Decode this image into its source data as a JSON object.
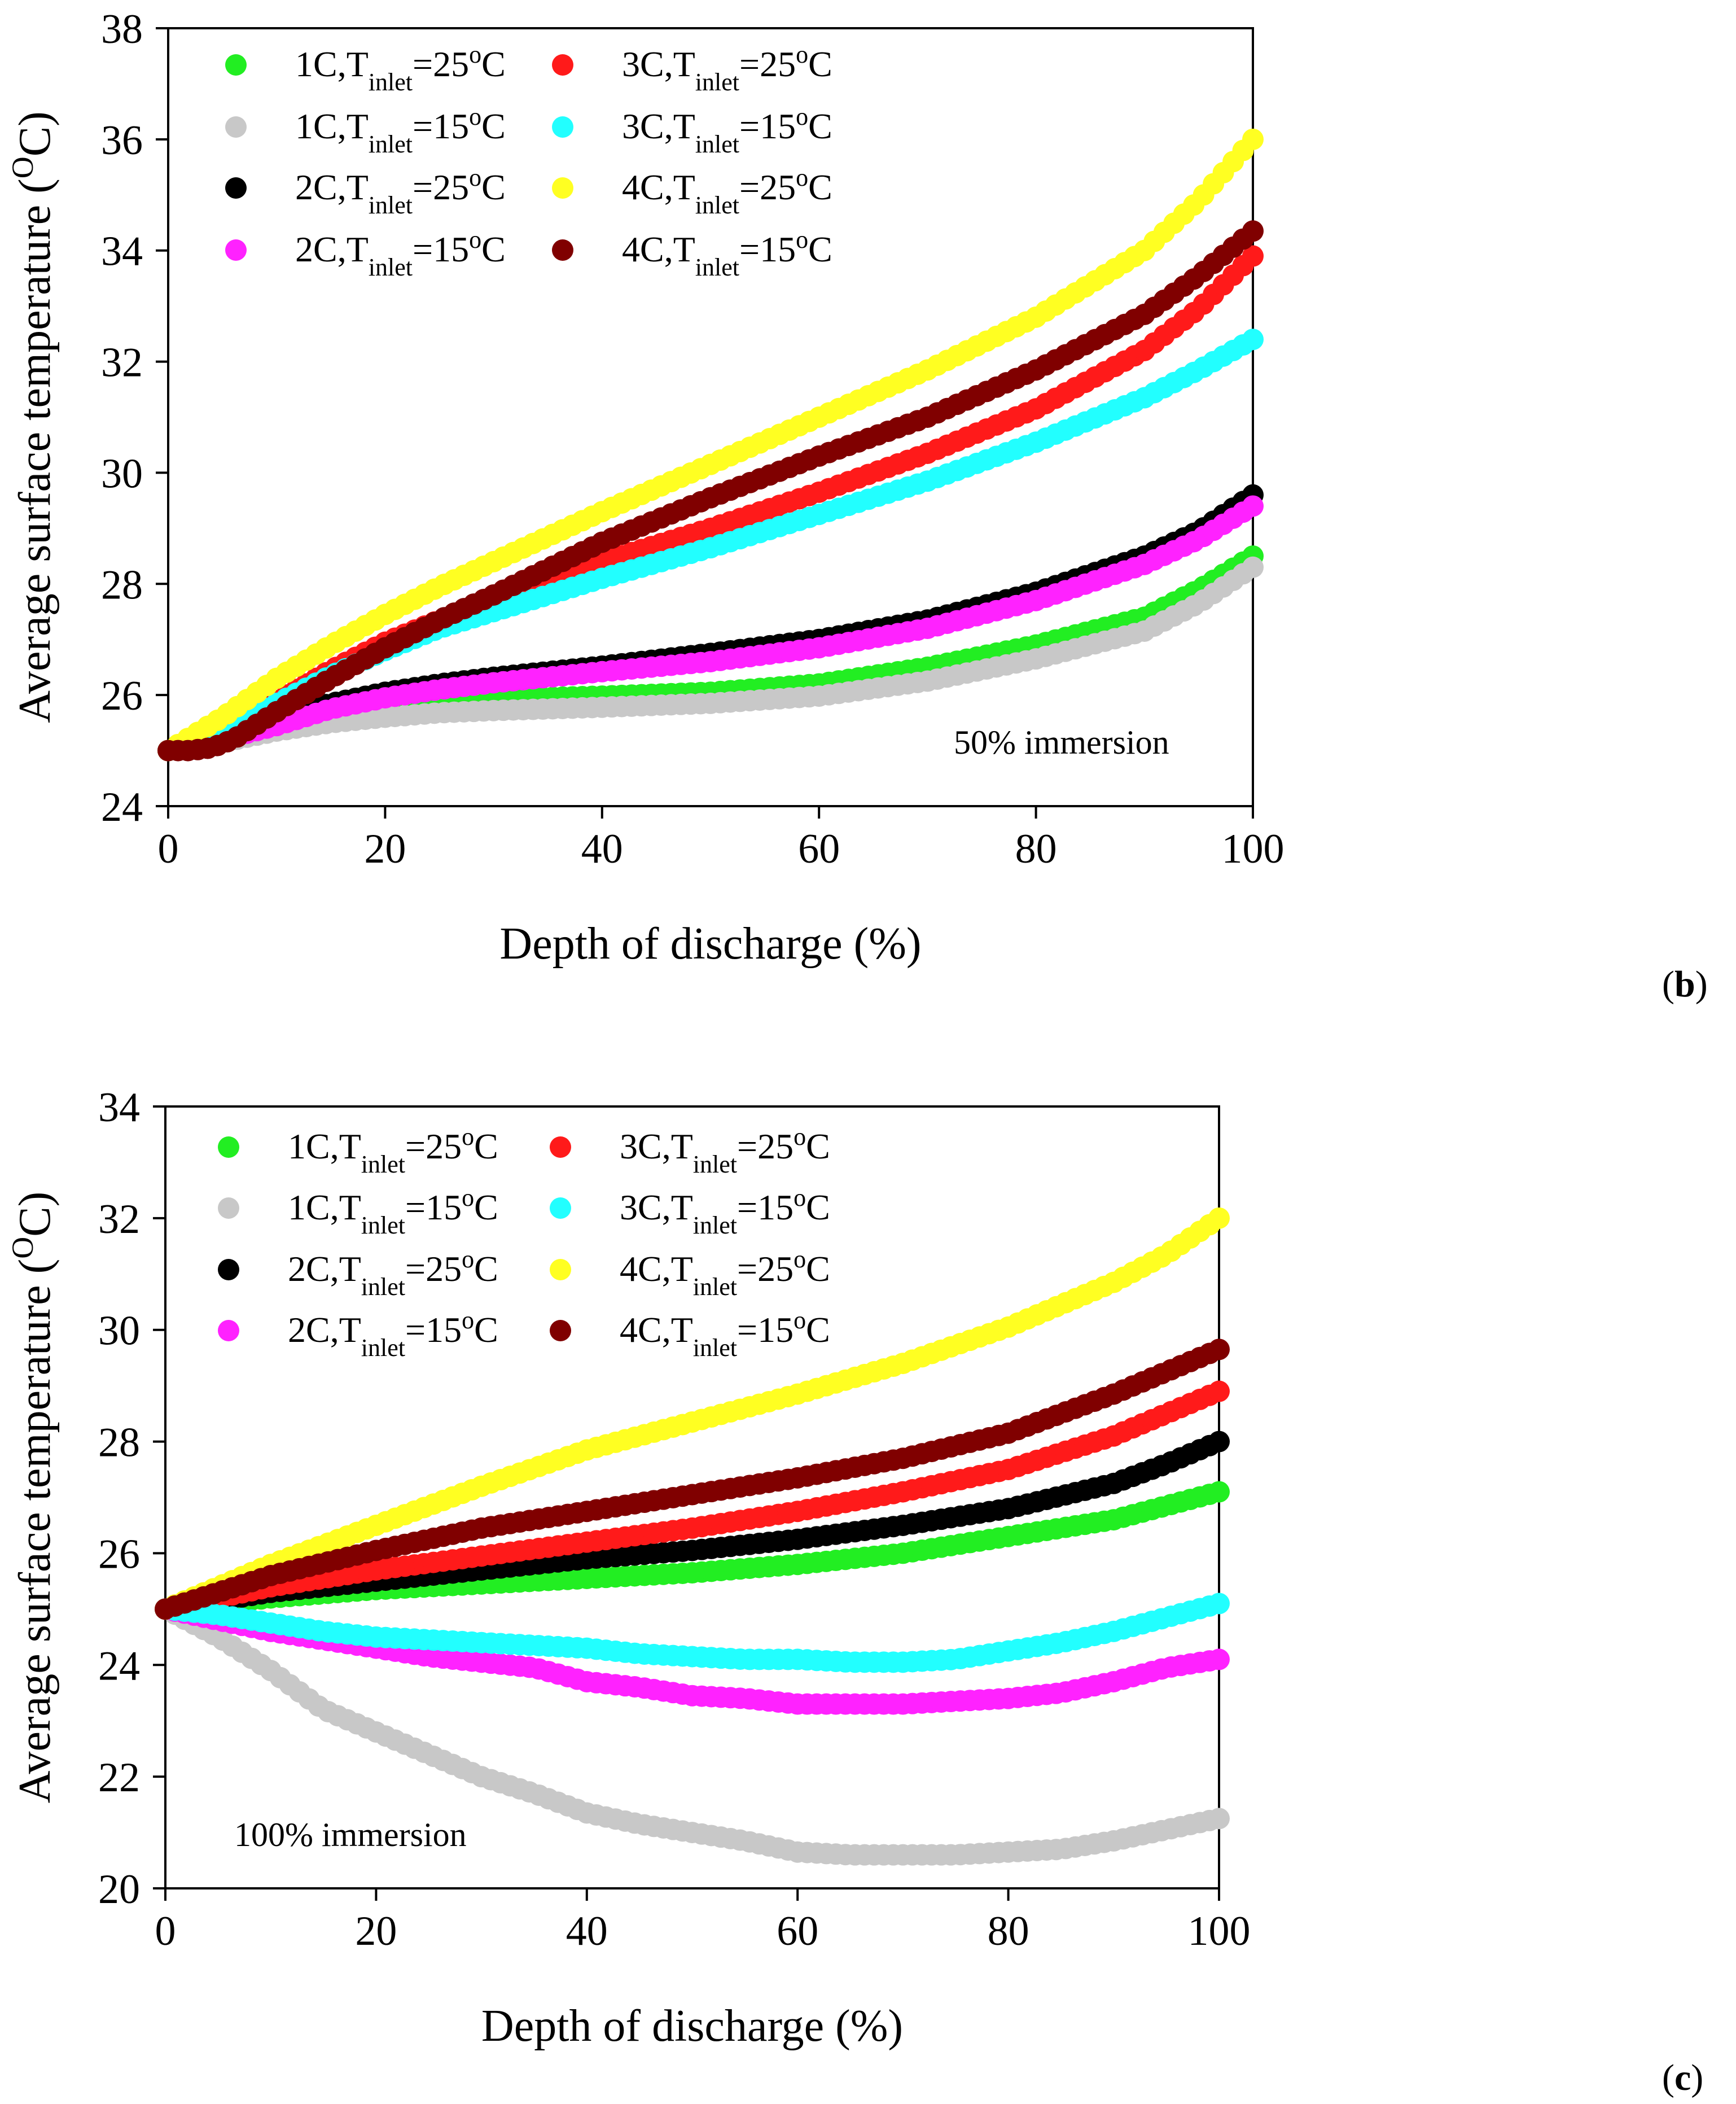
{
  "figure": {
    "panels": [
      {
        "label": "b"
      },
      {
        "label": "c"
      }
    ]
  },
  "legend_entries": [
    {
      "rate": "1C",
      "sub": "inlet",
      "eq": "=25",
      "unit": "C",
      "sup": "o",
      "var": "T",
      "color": "#22ee22"
    },
    {
      "rate": "1C",
      "sub": "inlet",
      "eq": "=15",
      "unit": "C",
      "sup": "o",
      "var": "T",
      "color": "#c8c8c8"
    },
    {
      "rate": "2C",
      "sub": "inlet",
      "eq": "=25",
      "unit": "C",
      "sup": "o",
      "var": "T",
      "color": "#000000"
    },
    {
      "rate": "2C",
      "sub": "inlet",
      "eq": "=15",
      "unit": "C",
      "sup": "o",
      "var": "T",
      "color": "#ff22ff"
    },
    {
      "rate": "3C",
      "sub": "inlet",
      "eq": "=25",
      "unit": "C",
      "sup": "o",
      "var": "T",
      "color": "#ff1a1a"
    },
    {
      "rate": "3C",
      "sub": "inlet",
      "eq": "=15",
      "unit": "C",
      "sup": "o",
      "var": "T",
      "color": "#22ffff"
    },
    {
      "rate": "4C",
      "sub": "inlet",
      "eq": "=25",
      "unit": "C",
      "sup": "o",
      "var": "T",
      "color": "#ffff22"
    },
    {
      "rate": "4C",
      "sub": "inlet",
      "eq": "=15",
      "unit": "C",
      "sup": "o",
      "var": "T",
      "color": "#800000"
    }
  ],
  "chart_data": [
    {
      "type": "scatter",
      "panel": "b",
      "annotation": "50% immersion",
      "xlabel": "Depth of discharge (%)",
      "ylabel_main": "Average surface temperature (",
      "ylabel_sup": "O",
      "ylabel_end": "C)",
      "xlim": [
        0,
        100
      ],
      "ylim": [
        24,
        38
      ],
      "xticks": [
        "0",
        "20",
        "40",
        "60",
        "80",
        "100"
      ],
      "yticks": [
        "24",
        "26",
        "28",
        "30",
        "32",
        "34",
        "36",
        "38"
      ],
      "series": [
        {
          "name": "1C,Tinlet=25oC",
          "x": [
            0,
            5,
            10,
            15,
            20,
            25,
            30,
            40,
            50,
            60,
            70,
            80,
            90,
            95,
            100
          ],
          "y": [
            25.0,
            25.2,
            25.45,
            25.7,
            25.85,
            25.9,
            25.93,
            25.98,
            26.05,
            26.2,
            26.5,
            26.9,
            27.4,
            27.9,
            28.5
          ]
        },
        {
          "name": "1C,Tinlet=15oC",
          "x": [
            0,
            5,
            10,
            15,
            20,
            25,
            30,
            40,
            50,
            60,
            70,
            80,
            90,
            95,
            100
          ],
          "y": [
            25.0,
            25.15,
            25.35,
            25.5,
            25.6,
            25.68,
            25.72,
            25.78,
            25.85,
            25.98,
            26.25,
            26.65,
            27.15,
            27.65,
            28.3
          ]
        },
        {
          "name": "2C,Tinlet=25oC",
          "x": [
            0,
            5,
            10,
            15,
            20,
            25,
            30,
            40,
            50,
            60,
            70,
            80,
            90,
            95,
            100
          ],
          "y": [
            25.0,
            25.25,
            25.6,
            25.85,
            26.05,
            26.2,
            26.32,
            26.52,
            26.75,
            27.0,
            27.35,
            27.85,
            28.5,
            28.95,
            29.6
          ]
        },
        {
          "name": "2C,Tinlet=15oC",
          "x": [
            0,
            5,
            10,
            15,
            20,
            25,
            30,
            40,
            50,
            60,
            70,
            80,
            90,
            95,
            100
          ],
          "y": [
            25.0,
            25.2,
            25.45,
            25.75,
            25.95,
            26.1,
            26.22,
            26.42,
            26.6,
            26.85,
            27.2,
            27.7,
            28.35,
            28.8,
            29.4
          ]
        },
        {
          "name": "3C,Tinlet=25oC",
          "x": [
            0,
            5,
            10,
            15,
            20,
            25,
            30,
            40,
            50,
            60,
            70,
            80,
            90,
            95,
            100
          ],
          "y": [
            25.0,
            25.35,
            25.9,
            26.45,
            26.95,
            27.35,
            27.7,
            28.4,
            29.0,
            29.65,
            30.35,
            31.15,
            32.2,
            32.95,
            33.9
          ]
        },
        {
          "name": "3C,Tinlet=15oC",
          "x": [
            0,
            5,
            10,
            15,
            20,
            25,
            30,
            40,
            50,
            60,
            70,
            80,
            90,
            95,
            100
          ],
          "y": [
            25.0,
            25.35,
            25.85,
            26.35,
            26.8,
            27.2,
            27.5,
            28.1,
            28.65,
            29.25,
            29.85,
            30.55,
            31.35,
            31.85,
            32.4
          ]
        },
        {
          "name": "4C,Tinlet=25oC",
          "x": [
            0,
            5,
            10,
            15,
            20,
            25,
            30,
            40,
            50,
            60,
            70,
            80,
            90,
            95,
            100
          ],
          "y": [
            25.0,
            25.6,
            26.3,
            26.9,
            27.45,
            27.95,
            28.4,
            29.3,
            30.15,
            31.0,
            31.85,
            32.8,
            34.0,
            34.9,
            36.0
          ]
        },
        {
          "name": "4C,Tinlet=15oC",
          "x": [
            0,
            2,
            4,
            6,
            10,
            15,
            20,
            25,
            30,
            40,
            50,
            60,
            70,
            80,
            90,
            95,
            100
          ],
          "y": [
            25.0,
            25.0,
            25.05,
            25.2,
            25.7,
            26.3,
            26.85,
            27.35,
            27.8,
            28.75,
            29.55,
            30.3,
            31.0,
            31.85,
            32.85,
            33.55,
            34.35
          ]
        }
      ]
    },
    {
      "type": "scatter",
      "panel": "c",
      "annotation": "100% immersion",
      "xlabel": "Depth of discharge (%)",
      "ylabel_main": "Average surface temperature (",
      "ylabel_sup": "O",
      "ylabel_end": "C)",
      "xlim": [
        0,
        100
      ],
      "ylim": [
        20,
        34
      ],
      "xticks": [
        "0",
        "20",
        "40",
        "60",
        "80",
        "100"
      ],
      "yticks": [
        "20",
        "22",
        "24",
        "26",
        "28",
        "30",
        "32",
        "34"
      ],
      "series": [
        {
          "name": "1C,Tinlet=25oC",
          "x": [
            0,
            5,
            10,
            20,
            30,
            40,
            50,
            60,
            70,
            80,
            90,
            95,
            100
          ],
          "y": [
            25.0,
            25.1,
            25.2,
            25.35,
            25.45,
            25.55,
            25.65,
            25.8,
            26.0,
            26.3,
            26.6,
            26.85,
            27.1
          ]
        },
        {
          "name": "1C,Tinlet=15oC",
          "x": [
            0,
            5,
            10,
            15,
            20,
            25,
            30,
            35,
            40,
            45,
            50,
            55,
            60,
            65,
            70,
            75,
            80,
            85,
            90,
            95,
            100
          ],
          "y": [
            25.0,
            24.5,
            23.9,
            23.2,
            22.8,
            22.4,
            22.0,
            21.7,
            21.35,
            21.15,
            21.0,
            20.85,
            20.65,
            20.6,
            20.6,
            20.6,
            20.65,
            20.7,
            20.85,
            21.05,
            21.25
          ]
        },
        {
          "name": "2C,Tinlet=25oC",
          "x": [
            0,
            5,
            10,
            20,
            30,
            40,
            50,
            60,
            70,
            80,
            90,
            95,
            100
          ],
          "y": [
            25.0,
            25.15,
            25.3,
            25.5,
            25.7,
            25.9,
            26.05,
            26.25,
            26.5,
            26.8,
            27.25,
            27.6,
            28.0
          ]
        },
        {
          "name": "2C,Tinlet=15oC",
          "x": [
            0,
            5,
            10,
            15,
            20,
            25,
            30,
            35,
            40,
            45,
            50,
            55,
            60,
            65,
            70,
            75,
            80,
            85,
            90,
            95,
            100
          ],
          "y": [
            25.0,
            24.8,
            24.6,
            24.45,
            24.3,
            24.15,
            24.05,
            23.95,
            23.7,
            23.6,
            23.45,
            23.4,
            23.3,
            23.3,
            23.3,
            23.35,
            23.4,
            23.5,
            23.7,
            23.95,
            24.1
          ]
        },
        {
          "name": "3C,Tinlet=25oC",
          "x": [
            0,
            5,
            10,
            20,
            30,
            40,
            50,
            60,
            70,
            80,
            90,
            95,
            100
          ],
          "y": [
            25.0,
            25.2,
            25.4,
            25.7,
            25.95,
            26.2,
            26.45,
            26.75,
            27.1,
            27.5,
            28.1,
            28.5,
            28.9
          ]
        },
        {
          "name": "3C,Tinlet=15oC",
          "x": [
            0,
            5,
            10,
            15,
            20,
            25,
            30,
            35,
            40,
            45,
            50,
            55,
            60,
            65,
            70,
            75,
            80,
            85,
            90,
            95,
            100
          ],
          "y": [
            25.0,
            24.9,
            24.75,
            24.6,
            24.5,
            24.45,
            24.4,
            24.35,
            24.3,
            24.2,
            24.15,
            24.1,
            24.1,
            24.05,
            24.05,
            24.1,
            24.25,
            24.4,
            24.6,
            24.85,
            25.1
          ]
        },
        {
          "name": "4C,Tinlet=25oC",
          "x": [
            0,
            5,
            10,
            20,
            30,
            40,
            50,
            60,
            70,
            80,
            90,
            95,
            100
          ],
          "y": [
            25.0,
            25.4,
            25.8,
            26.5,
            27.2,
            27.85,
            28.35,
            28.85,
            29.4,
            30.05,
            30.85,
            31.35,
            32.0
          ]
        },
        {
          "name": "4C,Tinlet=15oC",
          "x": [
            0,
            5,
            10,
            20,
            30,
            40,
            50,
            60,
            70,
            80,
            90,
            95,
            100
          ],
          "y": [
            25.0,
            25.3,
            25.6,
            26.05,
            26.45,
            26.75,
            27.05,
            27.35,
            27.7,
            28.15,
            28.85,
            29.25,
            29.65
          ]
        }
      ]
    }
  ]
}
